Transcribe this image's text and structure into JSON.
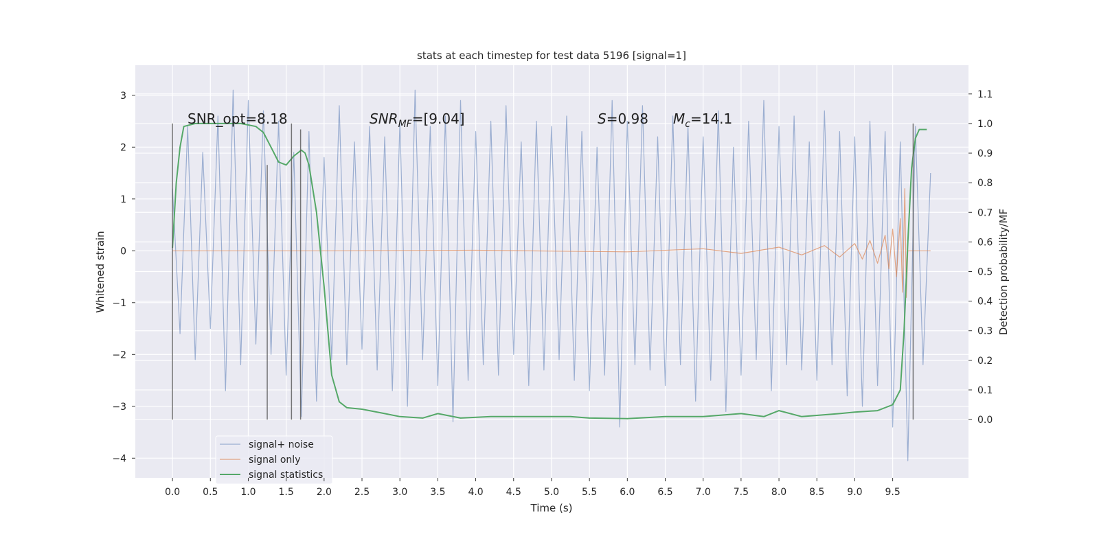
{
  "chart_data": {
    "type": "line",
    "title": "stats at each timestep for test data 5196 [signal=1]",
    "xlabel": "Time (s)",
    "ylabel": "Whitened strain",
    "y2label": "Detection probability/MF",
    "xlim": [
      -0.49,
      10.5
    ],
    "ylim": [
      -4.38,
      3.58
    ],
    "y2lim": [
      -0.197,
      1.197
    ],
    "xticks": [
      {
        "value": 0,
        "label": "0.0"
      },
      0.5,
      {
        "value": 1,
        "label": "1.0"
      },
      1.5,
      {
        "value": 2,
        "label": "2.0"
      },
      2.5,
      {
        "value": 3,
        "label": "3.0"
      },
      3.5,
      {
        "value": 4,
        "label": "4.0"
      },
      4.5,
      {
        "value": 5,
        "label": "5.0"
      },
      5.5,
      {
        "value": 6,
        "label": "6.0"
      },
      6.5,
      {
        "value": 7,
        "label": "7.0"
      },
      7.5,
      {
        "value": 8,
        "label": "8.0"
      },
      8.5,
      {
        "value": 9,
        "label": "9.0"
      },
      9.5
    ],
    "yticks": [
      3,
      2,
      1,
      0,
      {
        "value": -1,
        "label": "−1"
      },
      {
        "value": -2,
        "label": "−2"
      },
      {
        "value": -3,
        "label": "−3"
      },
      {
        "value": -4,
        "label": "−4"
      }
    ],
    "y2ticks": [
      {
        "value": 0,
        "label": "0.0"
      },
      0.1,
      0.2,
      0.3,
      0.4,
      0.5,
      0.6,
      0.7,
      0.8,
      0.9,
      {
        "value": 1,
        "label": "1.0"
      },
      1.1
    ],
    "grid": true,
    "legend": "lower left",
    "series": [
      {
        "name": "signal+ noise",
        "color": "#4c72b0",
        "x": [
          0,
          0.1,
          0.2,
          0.3,
          0.4,
          0.5,
          0.6,
          0.7,
          0.8,
          0.9,
          1,
          1.1,
          1.2,
          1.3,
          1.4,
          1.5,
          1.6,
          1.7,
          1.8,
          1.9,
          2,
          2.1,
          2.2,
          2.3,
          2.4,
          2.5,
          2.6,
          2.7,
          2.8,
          2.9,
          3,
          3.1,
          3.2,
          3.3,
          3.4,
          3.5,
          3.6,
          3.7,
          3.8,
          3.9,
          4,
          4.1,
          4.2,
          4.3,
          4.4,
          4.5,
          4.6,
          4.7,
          4.8,
          4.9,
          5,
          5.1,
          5.2,
          5.3,
          5.4,
          5.5,
          5.6,
          5.7,
          5.8,
          5.9,
          6,
          6.1,
          6.2,
          6.3,
          6.4,
          6.5,
          6.6,
          6.7,
          6.8,
          6.9,
          7,
          7.1,
          7.2,
          7.3,
          7.4,
          7.5,
          7.6,
          7.7,
          7.8,
          7.9,
          8,
          8.1,
          8.2,
          8.3,
          8.4,
          8.5,
          8.6,
          8.7,
          8.8,
          8.9,
          9,
          9.1,
          9.2,
          9.3,
          9.4,
          9.5,
          9.6,
          9.7,
          9.8,
          9.9,
          10
        ],
        "values": [
          1.2,
          -1.6,
          2.4,
          -2.1,
          1.9,
          -1.5,
          2.6,
          -2.7,
          3.1,
          -2.2,
          2.9,
          -1.8,
          2.7,
          -2.0,
          2.5,
          -2.4,
          1.9,
          -3.2,
          2.3,
          -2.9,
          1.8,
          -2.1,
          2.8,
          -2.2,
          2.1,
          -1.9,
          2.4,
          -2.3,
          2.2,
          -2.7,
          2.5,
          -3.0,
          3.1,
          -2.1,
          2.4,
          -2.6,
          2.6,
          -3.3,
          2.9,
          -2.5,
          2.3,
          -2.2,
          2.5,
          -2.4,
          2.8,
          -2.0,
          2.1,
          -2.6,
          2.5,
          -2.3,
          2.4,
          -2.1,
          2.6,
          -2.5,
          2.3,
          -2.7,
          2.0,
          -2.4,
          2.9,
          -3.4,
          2.5,
          -2.2,
          2.8,
          -2.3,
          2.2,
          -2.6,
          2.6,
          -2.2,
          2.4,
          -2.9,
          2.2,
          -2.5,
          2.7,
          -3.1,
          2.0,
          -2.4,
          2.5,
          -2.1,
          2.9,
          -2.7,
          2.4,
          -2.2,
          2.6,
          -2.3,
          2.1,
          -2.5,
          2.7,
          -2.2,
          2.3,
          -2.8,
          2.2,
          -3.0,
          2.5,
          -2.6,
          2.3,
          -3.4,
          2.1,
          -4.05,
          2.4,
          -2.2,
          1.5
        ]
      },
      {
        "name": "signal only",
        "color": "#dd8452",
        "x": [
          0,
          2,
          4,
          6,
          7,
          7.5,
          8,
          8.3,
          8.6,
          8.8,
          9.0,
          9.1,
          9.2,
          9.3,
          9.4,
          9.45,
          9.5,
          9.55,
          9.6,
          9.63,
          9.66,
          9.68,
          9.7,
          10
        ],
        "values": [
          0,
          0,
          0.01,
          -0.02,
          0.04,
          -0.05,
          0.07,
          -0.08,
          0.1,
          -0.12,
          0.14,
          -0.16,
          0.2,
          -0.24,
          0.3,
          -0.35,
          0.42,
          -0.5,
          0.62,
          -0.8,
          1.2,
          -0.9,
          0,
          0
        ]
      },
      {
        "name": "signal statistics",
        "color": "#55a868",
        "axis": "y2",
        "x": [
          0,
          0.05,
          0.1,
          0.15,
          0.3,
          0.5,
          0.9,
          1.1,
          1.2,
          1.3,
          1.4,
          1.5,
          1.6,
          1.7,
          1.75,
          1.8,
          1.9,
          2.0,
          2.1,
          2.2,
          2.3,
          2.5,
          2.8,
          3.0,
          3.3,
          3.5,
          3.8,
          4.2,
          4.5,
          5.0,
          5.25,
          5.5,
          6.0,
          6.5,
          7.0,
          7.5,
          7.8,
          8.0,
          8.3,
          8.8,
          9.0,
          9.3,
          9.5,
          9.6,
          9.65,
          9.7,
          9.75,
          9.8,
          9.85,
          9.95
        ],
        "values": [
          0.58,
          0.8,
          0.92,
          0.99,
          1.0,
          1.0,
          1.0,
          0.99,
          0.97,
          0.92,
          0.87,
          0.86,
          0.89,
          0.91,
          0.9,
          0.86,
          0.7,
          0.45,
          0.15,
          0.06,
          0.04,
          0.035,
          0.02,
          0.01,
          0.005,
          0.02,
          0.005,
          0.01,
          0.01,
          0.01,
          0.01,
          0.005,
          0.003,
          0.01,
          0.01,
          0.02,
          0.01,
          0.03,
          0.01,
          0.02,
          0.025,
          0.03,
          0.05,
          0.1,
          0.3,
          0.6,
          0.85,
          0.95,
          0.98,
          0.98
        ]
      }
    ],
    "vlines": {
      "color": "#555555",
      "axis": "y2",
      "x": [
        0,
        1.25,
        1.57,
        1.69,
        9.77
      ],
      "top": [
        1.0,
        0.86,
        1.0,
        0.98,
        1.0
      ],
      "bottom": 0
    },
    "annotations": {
      "snr_opt": "SNR_opt=8.18",
      "snr_mf": {
        "symbol": "SNR",
        "sub": "MF",
        "value": "=[9.04]"
      },
      "s": {
        "symbol": "S",
        "value": "=0.98"
      },
      "mc": {
        "symbol": "M",
        "sub": "c",
        "value": "=14.1"
      }
    }
  }
}
